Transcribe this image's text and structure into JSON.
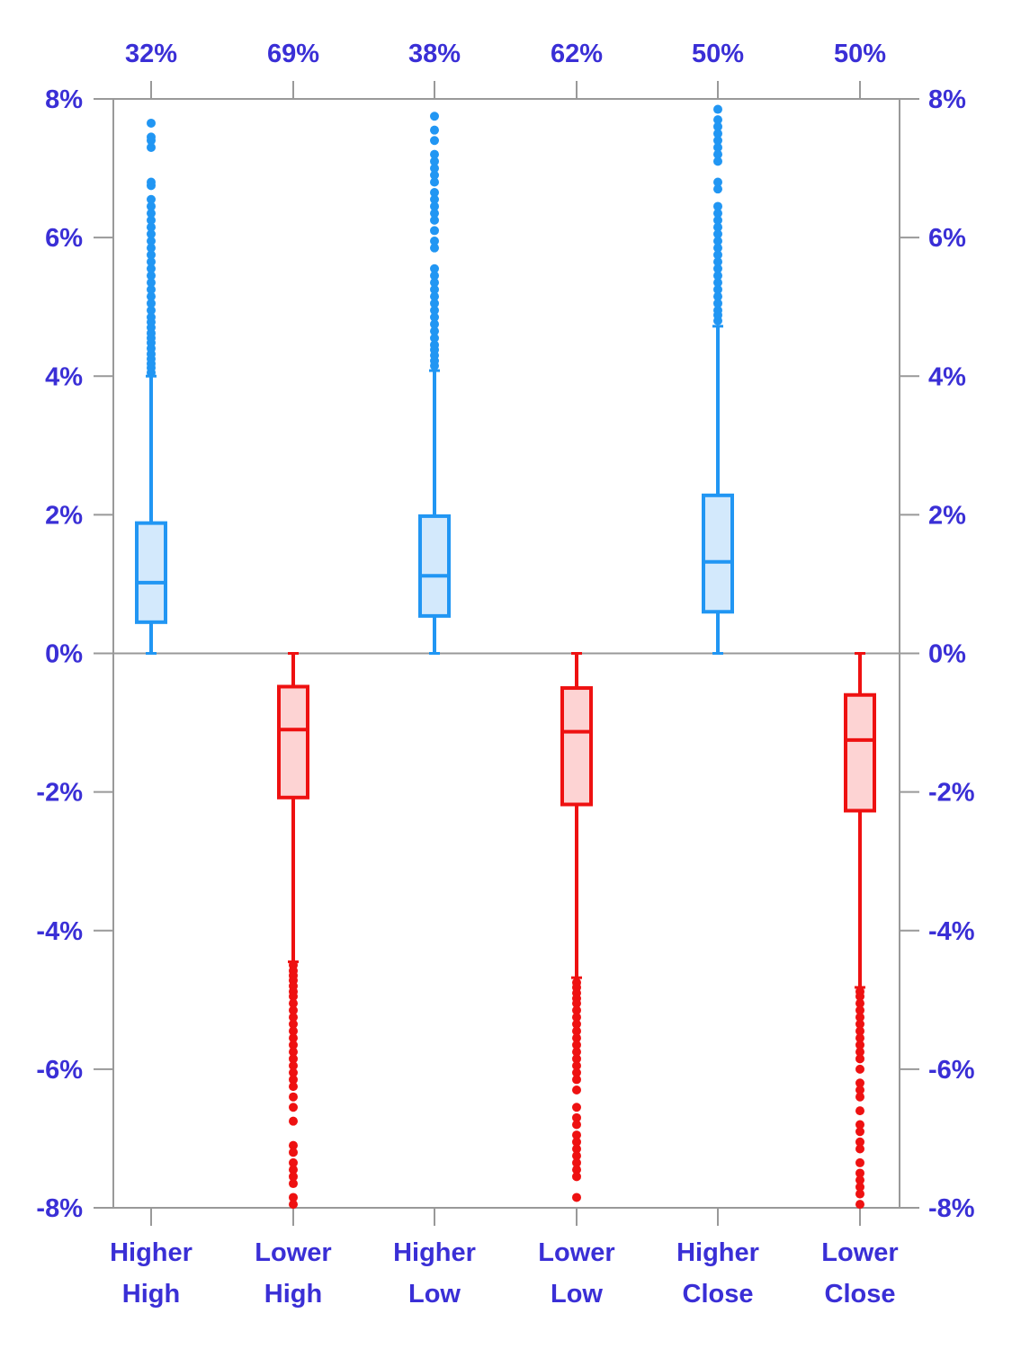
{
  "chart_data": {
    "type": "boxplot",
    "title": "",
    "xlabel": "",
    "ylabel": "",
    "ylim": [
      -8,
      8
    ],
    "y_ticks": [
      "-8%",
      "-6%",
      "-4%",
      "-2%",
      "0%",
      "2%",
      "4%",
      "6%",
      "8%"
    ],
    "y_tick_values": [
      -8,
      -6,
      -4,
      -2,
      0,
      2,
      4,
      6,
      8
    ],
    "grid": false,
    "colors": {
      "positive_stroke": "#2196F3",
      "positive_fill": "#D3E9FC",
      "negative_stroke": "#EE1111",
      "negative_fill": "#FDD3D3",
      "label": "#3A2FD6",
      "axis": "#999999"
    },
    "categories": [
      {
        "label_line1": "Higher",
        "label_line2": "High",
        "top_label": "32%",
        "sign": "positive",
        "whisker_low": 0.0,
        "q1": 0.45,
        "median": 1.02,
        "q3": 1.88,
        "whisker_high": 4.0,
        "outliers": [
          4.05,
          4.12,
          4.18,
          4.25,
          4.32,
          4.4,
          4.48,
          4.55,
          4.62,
          4.7,
          4.78,
          4.85,
          4.95,
          5.05,
          5.15,
          5.25,
          5.35,
          5.45,
          5.55,
          5.65,
          5.75,
          5.85,
          5.95,
          6.05,
          6.15,
          6.25,
          6.35,
          6.45,
          6.55,
          6.75,
          6.8,
          7.3,
          7.4,
          7.45,
          7.65
        ]
      },
      {
        "label_line1": "Lower",
        "label_line2": "High",
        "top_label": "69%",
        "sign": "negative",
        "whisker_low": -4.45,
        "q1": -2.08,
        "median": -1.1,
        "q3": -0.48,
        "whisker_high": 0.0,
        "outliers": [
          -4.5,
          -4.58,
          -4.65,
          -4.72,
          -4.8,
          -4.88,
          -4.95,
          -5.05,
          -5.15,
          -5.25,
          -5.35,
          -5.45,
          -5.55,
          -5.65,
          -5.75,
          -5.85,
          -5.95,
          -6.05,
          -6.15,
          -6.25,
          -6.4,
          -6.55,
          -6.75,
          -7.1,
          -7.2,
          -7.35,
          -7.45,
          -7.55,
          -7.65,
          -7.85,
          -7.95
        ]
      },
      {
        "label_line1": "Higher",
        "label_line2": "Low",
        "top_label": "38%",
        "sign": "positive",
        "whisker_low": 0.0,
        "q1": 0.54,
        "median": 1.12,
        "q3": 1.98,
        "whisker_high": 4.08,
        "outliers": [
          4.15,
          4.22,
          4.3,
          4.38,
          4.45,
          4.55,
          4.65,
          4.75,
          4.85,
          4.95,
          5.05,
          5.15,
          5.25,
          5.35,
          5.45,
          5.55,
          5.85,
          5.95,
          6.1,
          6.25,
          6.35,
          6.45,
          6.55,
          6.65,
          6.8,
          6.9,
          7.0,
          7.1,
          7.2,
          7.4,
          7.55,
          7.75
        ]
      },
      {
        "label_line1": "Lower",
        "label_line2": "Low",
        "top_label": "62%",
        "sign": "negative",
        "whisker_low": -4.68,
        "q1": -2.18,
        "median": -1.13,
        "q3": -0.5,
        "whisker_high": 0.0,
        "outliers": [
          -4.75,
          -4.82,
          -4.9,
          -4.98,
          -5.05,
          -5.15,
          -5.25,
          -5.35,
          -5.45,
          -5.55,
          -5.65,
          -5.75,
          -5.85,
          -5.95,
          -6.05,
          -6.15,
          -6.3,
          -6.55,
          -6.7,
          -6.8,
          -6.95,
          -7.05,
          -7.15,
          -7.25,
          -7.35,
          -7.45,
          -7.55,
          -7.85
        ]
      },
      {
        "label_line1": "Higher",
        "label_line2": "Close",
        "top_label": "50%",
        "sign": "positive",
        "whisker_low": 0.0,
        "q1": 0.6,
        "median": 1.32,
        "q3": 2.28,
        "whisker_high": 4.72,
        "outliers": [
          4.8,
          4.88,
          4.95,
          5.05,
          5.15,
          5.25,
          5.35,
          5.45,
          5.55,
          5.65,
          5.75,
          5.85,
          5.95,
          6.05,
          6.15,
          6.25,
          6.35,
          6.45,
          6.7,
          6.8,
          7.1,
          7.2,
          7.3,
          7.4,
          7.5,
          7.6,
          7.7,
          7.85
        ]
      },
      {
        "label_line1": "Lower",
        "label_line2": "Close",
        "top_label": "50%",
        "sign": "negative",
        "whisker_low": -4.82,
        "q1": -2.27,
        "median": -1.25,
        "q3": -0.6,
        "whisker_high": 0.0,
        "outliers": [
          -4.88,
          -4.95,
          -5.05,
          -5.15,
          -5.25,
          -5.35,
          -5.45,
          -5.55,
          -5.65,
          -5.75,
          -5.85,
          -6.0,
          -6.2,
          -6.3,
          -6.4,
          -6.6,
          -6.8,
          -6.9,
          -7.05,
          -7.15,
          -7.35,
          -7.5,
          -7.6,
          -7.7,
          -7.8,
          -7.95
        ]
      }
    ]
  }
}
